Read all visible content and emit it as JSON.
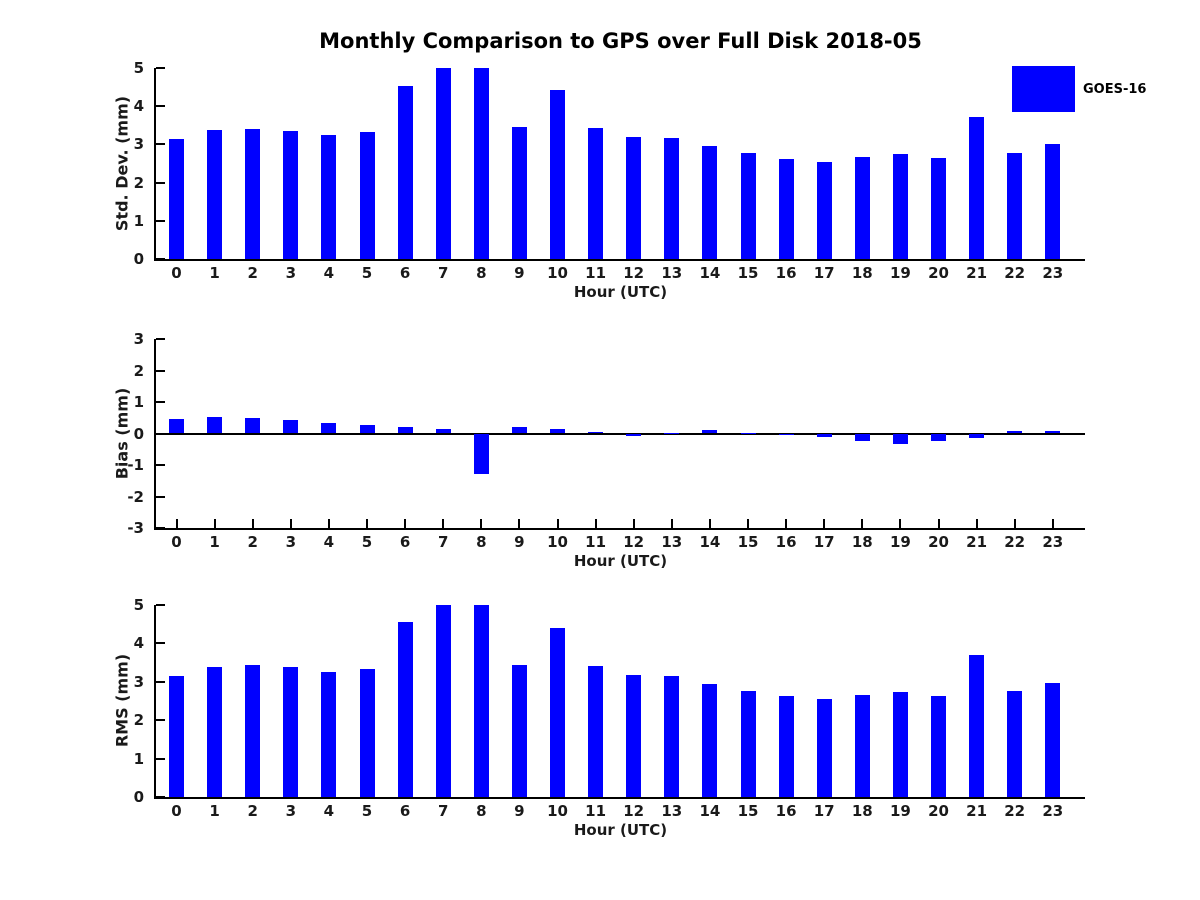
{
  "title": "Monthly Comparison to GPS over Full Disk 2018-05",
  "legend": {
    "label": "GOES-16",
    "color": "#0000ff"
  },
  "colors": {
    "bar": "#0000ff",
    "axis": "#000000",
    "text": "#1a1a1a",
    "background": "#ffffff"
  },
  "chart_data": [
    {
      "type": "bar",
      "name": "std-dev",
      "categories": [
        "0",
        "1",
        "2",
        "3",
        "4",
        "5",
        "6",
        "7",
        "8",
        "9",
        "10",
        "11",
        "12",
        "13",
        "14",
        "15",
        "16",
        "17",
        "18",
        "19",
        "20",
        "21",
        "22",
        "23"
      ],
      "values": [
        3.14,
        3.38,
        3.41,
        3.36,
        3.25,
        3.33,
        4.54,
        5.0,
        5.0,
        3.46,
        4.42,
        3.43,
        3.2,
        3.18,
        2.95,
        2.78,
        2.63,
        2.55,
        2.68,
        2.76,
        2.65,
        3.72,
        2.78,
        3.02
      ],
      "xlabel": "Hour (UTC)",
      "ylabel": "Std. Dev. (mm)",
      "ylim": [
        0,
        5
      ],
      "yticks": [
        0,
        1,
        2,
        3,
        4,
        5
      ],
      "grid": false,
      "legend_entries": [
        "GOES-16"
      ],
      "legend_position": "upper right"
    },
    {
      "type": "bar",
      "name": "bias",
      "categories": [
        "0",
        "1",
        "2",
        "3",
        "4",
        "5",
        "6",
        "7",
        "8",
        "9",
        "10",
        "11",
        "12",
        "13",
        "14",
        "15",
        "16",
        "17",
        "18",
        "19",
        "20",
        "21",
        "22",
        "23"
      ],
      "values": [
        0.46,
        0.52,
        0.48,
        0.43,
        0.34,
        0.28,
        0.21,
        0.14,
        -1.29,
        0.21,
        0.14,
        0.06,
        -0.08,
        0.02,
        0.11,
        0.01,
        -0.06,
        -0.1,
        -0.25,
        -0.34,
        -0.24,
        -0.13,
        0.08,
        0.08
      ],
      "xlabel": "Hour (UTC)",
      "ylabel": "Bias (mm)",
      "ylim": [
        -3,
        3
      ],
      "yticks": [
        -3,
        -2,
        -1,
        0,
        1,
        2,
        3
      ],
      "grid": false,
      "zero_line": true
    },
    {
      "type": "bar",
      "name": "rms",
      "categories": [
        "0",
        "1",
        "2",
        "3",
        "4",
        "5",
        "6",
        "7",
        "8",
        "9",
        "10",
        "11",
        "12",
        "13",
        "14",
        "15",
        "16",
        "17",
        "18",
        "19",
        "20",
        "21",
        "22",
        "23"
      ],
      "values": [
        3.15,
        3.39,
        3.43,
        3.38,
        3.26,
        3.34,
        4.55,
        5.0,
        5.0,
        3.45,
        4.4,
        3.42,
        3.17,
        3.14,
        2.93,
        2.75,
        2.62,
        2.54,
        2.66,
        2.74,
        2.63,
        3.69,
        2.75,
        2.98
      ],
      "xlabel": "Hour (UTC)",
      "ylabel": "RMS (mm)",
      "ylim": [
        0,
        5
      ],
      "yticks": [
        0,
        1,
        2,
        3,
        4,
        5
      ],
      "grid": false
    }
  ]
}
